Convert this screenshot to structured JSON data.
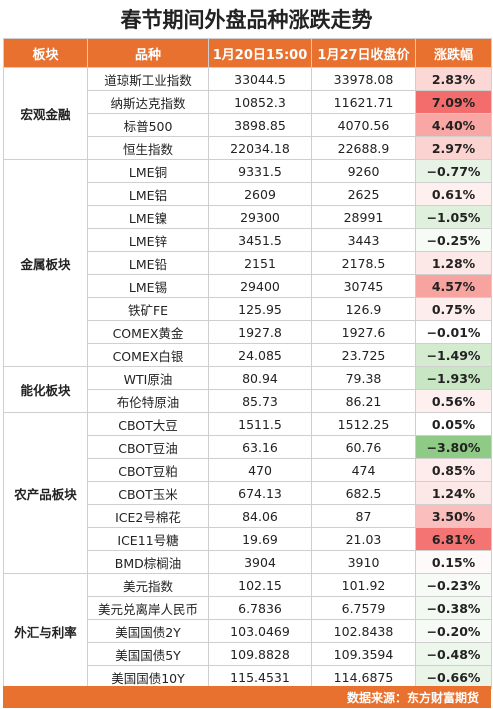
{
  "title": "春节期间外盘品种涨跌走势",
  "headers": [
    "板块",
    "品种",
    "1月20日15:00",
    "1月27日收盘价",
    "涨跌幅"
  ],
  "sectors": [
    {
      "name": "宏观金融",
      "rows": [
        {
          "name": "道琼斯工业指数",
          "p1": "33044.5",
          "p2": "33978.08",
          "chg": "2.83%",
          "color": "#fbd7d5"
        },
        {
          "name": "纳斯达克指数",
          "p1": "10852.3",
          "p2": "11621.71",
          "chg": "7.09%",
          "color": "#f26d6b"
        },
        {
          "name": "标普500",
          "p1": "3898.85",
          "p2": "4070.56",
          "chg": "4.40%",
          "color": "#f8a7a4"
        },
        {
          "name": "恒生指数",
          "p1": "22034.18",
          "p2": "22688.9",
          "chg": "2.97%",
          "color": "#fbd3d0"
        }
      ]
    },
    {
      "name": "金属板块",
      "rows": [
        {
          "name": "LME铜",
          "p1": "9331.5",
          "p2": "9260",
          "chg": "−0.77%",
          "color": "#e7f4e5"
        },
        {
          "name": "LME铝",
          "p1": "2609",
          "p2": "2625",
          "chg": "0.61%",
          "color": "#fdf0ef"
        },
        {
          "name": "LME镍",
          "p1": "29300",
          "p2": "28991",
          "chg": "−1.05%",
          "color": "#dff0dc"
        },
        {
          "name": "LME锌",
          "p1": "3451.5",
          "p2": "3443",
          "chg": "−0.25%",
          "color": "#f6fbf5"
        },
        {
          "name": "LME铅",
          "p1": "2151",
          "p2": "2178.5",
          "chg": "1.28%",
          "color": "#fce8e6"
        },
        {
          "name": "LME锡",
          "p1": "29400",
          "p2": "30745",
          "chg": "4.57%",
          "color": "#f7a4a1"
        },
        {
          "name": "铁矿FE",
          "p1": "125.95",
          "p2": "126.9",
          "chg": "0.75%",
          "color": "#fdeeed"
        },
        {
          "name": "COMEX黄金",
          "p1": "1927.8",
          "p2": "1927.6",
          "chg": "−0.01%",
          "color": "#ffffff"
        },
        {
          "name": "COMEX白银",
          "p1": "24.085",
          "p2": "23.725",
          "chg": "−1.49%",
          "color": "#d4ebd0"
        }
      ]
    },
    {
      "name": "能化板块",
      "rows": [
        {
          "name": "WTI原油",
          "p1": "80.94",
          "p2": "79.38",
          "chg": "−1.93%",
          "color": "#c9e6c4"
        },
        {
          "name": "布伦特原油",
          "p1": "85.73",
          "p2": "86.21",
          "chg": "0.56%",
          "color": "#fdf0ef"
        }
      ]
    },
    {
      "name": "农产品板块",
      "rows": [
        {
          "name": "CBOT大豆",
          "p1": "1511.5",
          "p2": "1512.25",
          "chg": "0.05%",
          "color": "#ffffff"
        },
        {
          "name": "CBOT豆油",
          "p1": "63.16",
          "p2": "60.76",
          "chg": "−3.80%",
          "color": "#8fca86"
        },
        {
          "name": "CBOT豆粕",
          "p1": "470",
          "p2": "474",
          "chg": "0.85%",
          "color": "#fdeceb"
        },
        {
          "name": "CBOT玉米",
          "p1": "674.13",
          "p2": "682.5",
          "chg": "1.24%",
          "color": "#fce8e6"
        },
        {
          "name": "ICE2号棉花",
          "p1": "84.06",
          "p2": "87",
          "chg": "3.50%",
          "color": "#fabfbc"
        },
        {
          "name": "ICE11号糖",
          "p1": "19.69",
          "p2": "21.03",
          "chg": "6.81%",
          "color": "#f37472"
        },
        {
          "name": "BMD棕榈油",
          "p1": "3904",
          "p2": "3910",
          "chg": "0.15%",
          "color": "#fffafa"
        }
      ]
    },
    {
      "name": "外汇与利率",
      "rows": [
        {
          "name": "美元指数",
          "p1": "102.15",
          "p2": "101.92",
          "chg": "−0.23%",
          "color": "#f6fbf5"
        },
        {
          "name": "美元兑离岸人民币",
          "p1": "6.7836",
          "p2": "6.7579",
          "chg": "−0.38%",
          "color": "#f2f9f0"
        },
        {
          "name": "美国国债2Y",
          "p1": "103.0469",
          "p2": "102.8438",
          "chg": "−0.20%",
          "color": "#f7fbf6"
        },
        {
          "name": "美国国债5Y",
          "p1": "109.8828",
          "p2": "109.3594",
          "chg": "−0.48%",
          "color": "#eef7ec"
        },
        {
          "name": "美国国债10Y",
          "p1": "115.4531",
          "p2": "114.6875",
          "chg": "−0.66%",
          "color": "#eaf5e8"
        }
      ]
    }
  ],
  "footer": "数据来源：东方财富期货"
}
